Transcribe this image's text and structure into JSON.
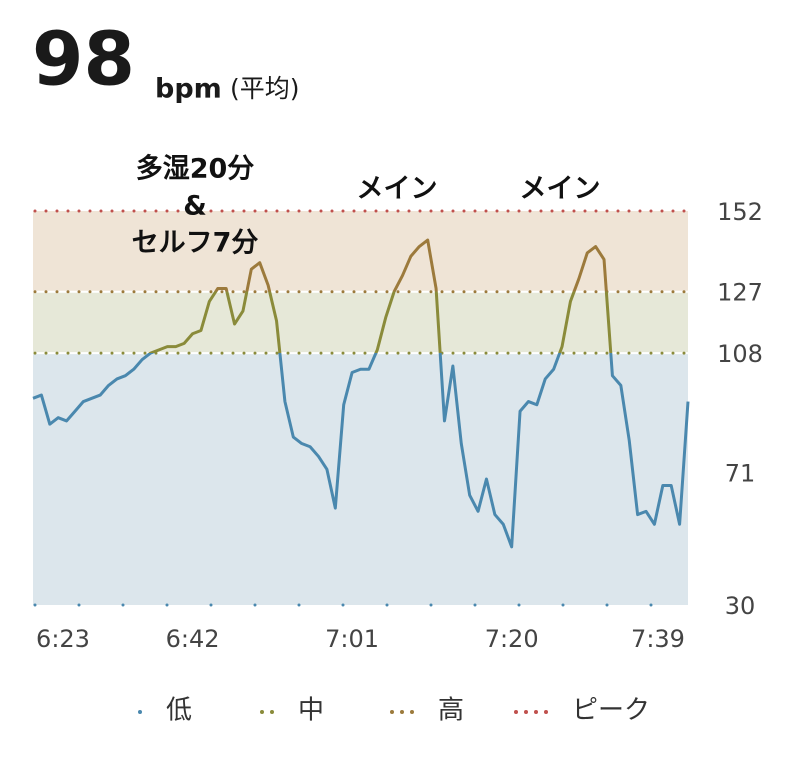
{
  "header": {
    "average": 98,
    "unit": "bpm",
    "label": "(平均)"
  },
  "chart_data": {
    "type": "line",
    "annotations": [
      [
        "多湿20分",
        "&",
        "セルフ7分"
      ],
      [
        "メイン"
      ],
      [
        "メイン"
      ]
    ],
    "zones": [
      {
        "name": "低",
        "min": 30,
        "color": "#4a88ae",
        "fill": "#dce6ec"
      },
      {
        "name": "中",
        "min": 108,
        "color": "#8a8b3a",
        "fill": "#e6e8d8"
      },
      {
        "name": "高",
        "min": 127,
        "color": "#9c7a3c",
        "fill": "#efe4d6"
      },
      {
        "name": "ピーク",
        "min": 152,
        "color": "#c0504d"
      }
    ],
    "x": [
      383,
      384,
      385,
      386,
      387,
      388,
      389,
      390,
      391,
      392,
      393,
      394,
      395,
      396,
      397,
      398,
      399,
      400,
      401,
      402,
      403,
      404,
      405,
      406,
      407,
      408,
      409,
      410,
      411,
      412,
      413,
      414,
      415,
      416,
      417,
      418,
      419,
      420,
      421,
      422,
      423,
      424,
      425,
      426,
      427,
      428,
      429,
      430,
      431,
      432,
      433,
      434,
      435,
      436,
      437,
      438,
      439,
      440,
      441,
      442,
      443,
      444,
      445,
      446,
      447,
      448,
      449,
      450,
      451,
      452,
      453,
      454,
      455,
      456,
      457,
      458,
      459,
      460,
      461
    ],
    "values": [
      94,
      95,
      86,
      88,
      87,
      90,
      93,
      94,
      95,
      98,
      100,
      101,
      103,
      106,
      108,
      109,
      110,
      110,
      111,
      114,
      115,
      124,
      128,
      128,
      117,
      121,
      134,
      136,
      129,
      118,
      93,
      82,
      80,
      79,
      76,
      72,
      60,
      92,
      102,
      103,
      103,
      109,
      119,
      127,
      132,
      138,
      141,
      143,
      128,
      87,
      104,
      80,
      64,
      59,
      69,
      58,
      55,
      48,
      90,
      93,
      92,
      100,
      103,
      110,
      124,
      131,
      139,
      141,
      137,
      101,
      98,
      81,
      58,
      59,
      55,
      67,
      67,
      55,
      93
    ],
    "xlim": [
      383,
      461
    ],
    "xticks": [
      {
        "value": 383,
        "label": "6:23"
      },
      {
        "value": 402,
        "label": "6:42"
      },
      {
        "value": 421,
        "label": "7:01"
      },
      {
        "value": 440,
        "label": "7:20"
      },
      {
        "value": 459,
        "label": "7:39"
      }
    ],
    "ylim": [
      30,
      152
    ],
    "yticks": [
      30,
      71,
      108,
      127,
      152
    ]
  }
}
